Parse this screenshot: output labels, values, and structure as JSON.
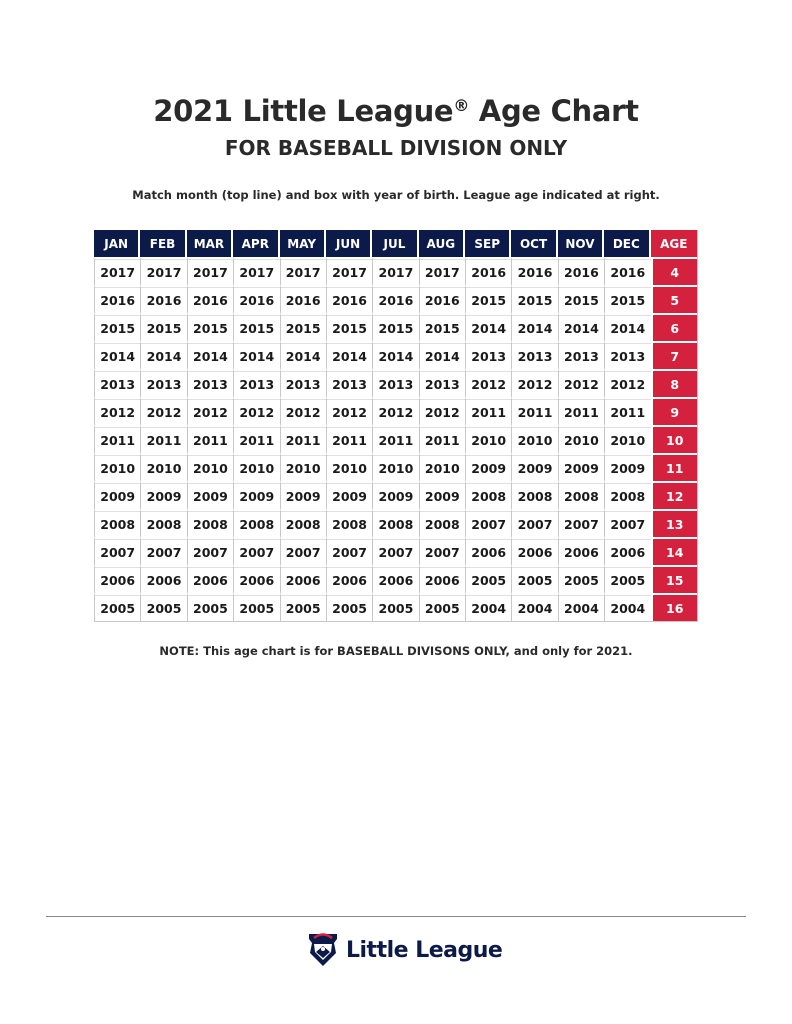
{
  "title": "2021 Little League",
  "title_mark": "®",
  "title_suffix": " Age Chart",
  "subtitle": "FOR BASEBALL DIVISION ONLY",
  "instructions": "Match month (top line) and box with year of birth. League age indicated at right.",
  "table": {
    "months": [
      "JAN",
      "FEB",
      "MAR",
      "APR",
      "MAY",
      "JUN",
      "JUL",
      "AUG",
      "SEP",
      "OCT",
      "NOV",
      "DEC"
    ],
    "age_header": "AGE",
    "rows": [
      {
        "years": [
          "2017",
          "2017",
          "2017",
          "2017",
          "2017",
          "2017",
          "2017",
          "2017",
          "2016",
          "2016",
          "2016",
          "2016"
        ],
        "age": "4"
      },
      {
        "years": [
          "2016",
          "2016",
          "2016",
          "2016",
          "2016",
          "2016",
          "2016",
          "2016",
          "2015",
          "2015",
          "2015",
          "2015"
        ],
        "age": "5"
      },
      {
        "years": [
          "2015",
          "2015",
          "2015",
          "2015",
          "2015",
          "2015",
          "2015",
          "2015",
          "2014",
          "2014",
          "2014",
          "2014"
        ],
        "age": "6"
      },
      {
        "years": [
          "2014",
          "2014",
          "2014",
          "2014",
          "2014",
          "2014",
          "2014",
          "2014",
          "2013",
          "2013",
          "2013",
          "2013"
        ],
        "age": "7"
      },
      {
        "years": [
          "2013",
          "2013",
          "2013",
          "2013",
          "2013",
          "2013",
          "2013",
          "2013",
          "2012",
          "2012",
          "2012",
          "2012"
        ],
        "age": "8"
      },
      {
        "years": [
          "2012",
          "2012",
          "2012",
          "2012",
          "2012",
          "2012",
          "2012",
          "2012",
          "2011",
          "2011",
          "2011",
          "2011"
        ],
        "age": "9"
      },
      {
        "years": [
          "2011",
          "2011",
          "2011",
          "2011",
          "2011",
          "2011",
          "2011",
          "2011",
          "2010",
          "2010",
          "2010",
          "2010"
        ],
        "age": "10"
      },
      {
        "years": [
          "2010",
          "2010",
          "2010",
          "2010",
          "2010",
          "2010",
          "2010",
          "2010",
          "2009",
          "2009",
          "2009",
          "2009"
        ],
        "age": "11"
      },
      {
        "years": [
          "2009",
          "2009",
          "2009",
          "2009",
          "2009",
          "2009",
          "2009",
          "2009",
          "2008",
          "2008",
          "2008",
          "2008"
        ],
        "age": "12"
      },
      {
        "years": [
          "2008",
          "2008",
          "2008",
          "2008",
          "2008",
          "2008",
          "2008",
          "2008",
          "2007",
          "2007",
          "2007",
          "2007"
        ],
        "age": "13"
      },
      {
        "years": [
          "2007",
          "2007",
          "2007",
          "2007",
          "2007",
          "2007",
          "2007",
          "2007",
          "2006",
          "2006",
          "2006",
          "2006"
        ],
        "age": "14"
      },
      {
        "years": [
          "2006",
          "2006",
          "2006",
          "2006",
          "2006",
          "2006",
          "2006",
          "2006",
          "2005",
          "2005",
          "2005",
          "2005"
        ],
        "age": "15"
      },
      {
        "years": [
          "2005",
          "2005",
          "2005",
          "2005",
          "2005",
          "2005",
          "2005",
          "2005",
          "2004",
          "2004",
          "2004",
          "2004"
        ],
        "age": "16"
      }
    ]
  },
  "note": "NOTE: This age chart is for BASEBALL DIVISONS ONLY, and only for 2021.",
  "footer": {
    "logo_icon": "little-league-keystone-icon",
    "logo_text": "Little League"
  },
  "colors": {
    "navy": "#0c1a4a",
    "red": "#d4213d"
  }
}
